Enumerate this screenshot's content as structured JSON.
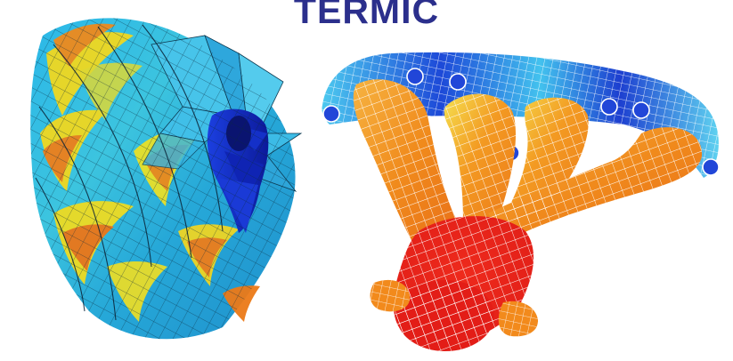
{
  "title": "TERMIC",
  "colors": {
    "title": "#2b2f8c",
    "background": "#ffffff",
    "cold": "#1a2fd0",
    "cool": "#22b6ee",
    "mid": "#4fd4e8",
    "warm": "#f0e020",
    "hot": "#f08a1c",
    "hottest": "#e8231c"
  },
  "figures": [
    {
      "name": "turbine-impeller-thermal-mesh"
    },
    {
      "name": "exhaust-manifold-thermal-mesh"
    }
  ]
}
